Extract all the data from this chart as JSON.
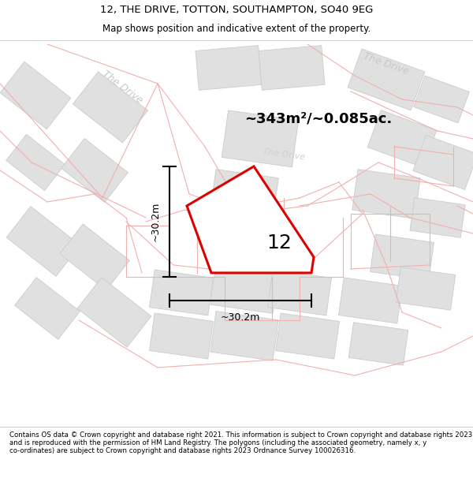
{
  "title_line1": "12, THE DRIVE, TOTTON, SOUTHAMPTON, SO40 9EG",
  "title_line2": "Map shows position and indicative extent of the property.",
  "area_text": "~343m²/~0.085ac.",
  "property_number": "12",
  "dim_vertical": "~30.2m",
  "dim_horizontal": "~30.2m",
  "map_bg": "#f2f2f2",
  "road_bg": "#ffffff",
  "road_line_color": "#f0b0b0",
  "building_fill": "#e0e0e0",
  "building_edge": "#cccccc",
  "property_fill": "#ffffff",
  "property_edge": "#dd0000",
  "road_label_color": "#c8c8c8",
  "footer_text": "Contains OS data © Crown copyright and database right 2021. This information is subject to Crown copyright and database rights 2023 and is reproduced with the permission of HM Land Registry. The polygons (including the associated geometry, namely x, y co-ordinates) are subject to Crown copyright and database rights 2023 Ordnance Survey 100026316.",
  "title_fontsize": 9.5,
  "subtitle_fontsize": 8.5,
  "area_fontsize": 13,
  "number_fontsize": 18,
  "dim_fontsize": 9,
  "road_label_fontsize": 9,
  "footer_fontsize": 6.2
}
